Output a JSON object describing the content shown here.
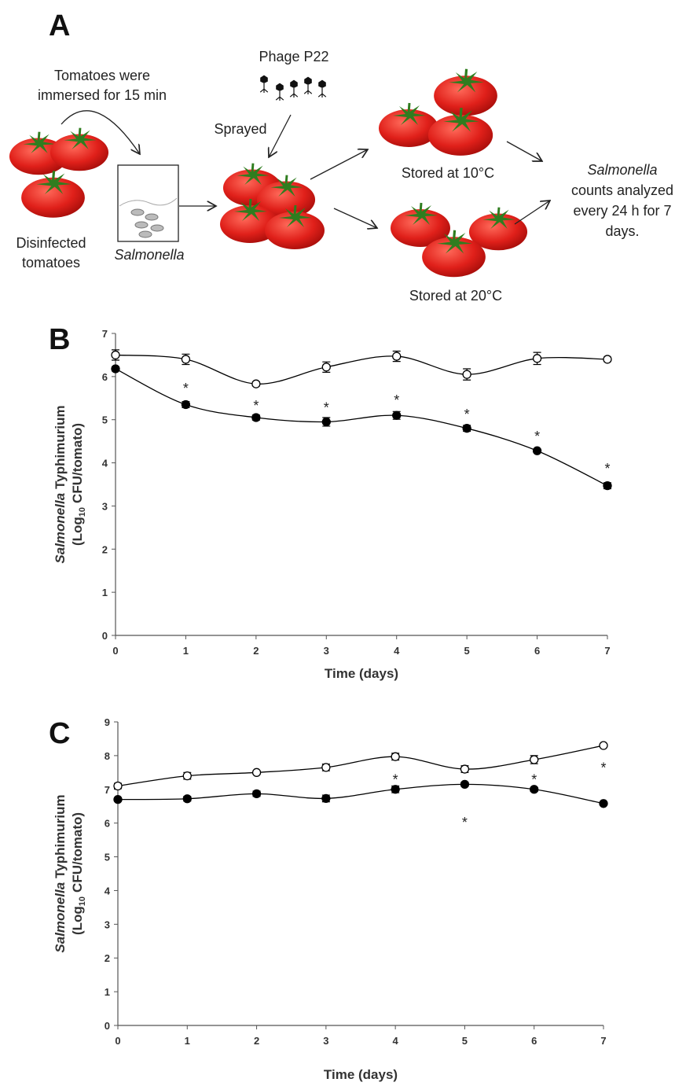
{
  "diagram": {
    "label": "A",
    "immersed": [
      "Tomatoes were",
      "immersed for 15 min"
    ],
    "phage": "Phage P22",
    "sprayed": "Sprayed",
    "disinfected": [
      "Disinfected",
      "tomatoes"
    ],
    "salmonella": "Salmonella",
    "stored_10": "Stored at 10°C",
    "stored_20": "Stored at 20°C",
    "counts": [
      "Salmonella",
      "counts analyzed",
      "every 24 h for 7",
      "days."
    ]
  },
  "chart_data": [
    {
      "type": "line",
      "panel_label": "B",
      "x": [
        0,
        1,
        2,
        3,
        4,
        5,
        6,
        7
      ],
      "series": [
        {
          "color": "#000000",
          "marker": "open",
          "values": [
            6.5,
            6.4,
            5.83,
            6.22,
            6.47,
            6.05,
            6.42,
            6.4
          ],
          "errors": [
            0.12,
            0.12,
            0.05,
            0.12,
            0.12,
            0.13,
            0.14,
            0.05
          ]
        },
        {
          "color": "#000000",
          "marker": "filled",
          "values": [
            6.18,
            5.35,
            5.05,
            4.95,
            5.1,
            4.8,
            4.28,
            3.47
          ],
          "errors": [
            0.05,
            0.07,
            0.06,
            0.1,
            0.09,
            0.07,
            0.04,
            0.07
          ]
        }
      ],
      "xlim": [
        0,
        7
      ],
      "xticks": [
        0,
        1,
        2,
        3,
        4,
        5,
        6,
        7
      ],
      "ylim": [
        0,
        7
      ],
      "yticks": [
        0,
        1,
        2,
        3,
        4,
        5,
        6,
        7
      ],
      "x_label": "Time (days)",
      "y_label": [
        "Salmonella",
        "Typhimurium",
        "(Log",
        "10",
        "CFU/tomato)"
      ],
      "annotations": [
        {
          "text": "*",
          "x": 1,
          "y": 5.83
        },
        {
          "text": "*",
          "x": 2,
          "y": 5.43
        },
        {
          "text": "*",
          "x": 3,
          "y": 5.39
        },
        {
          "text": "*",
          "x": 4,
          "y": 5.56
        },
        {
          "text": "*",
          "x": 5,
          "y": 5.23
        },
        {
          "text": "*",
          "x": 6,
          "y": 4.72
        },
        {
          "text": "*",
          "x": 7,
          "y": 3.97
        }
      ]
    },
    {
      "type": "line",
      "panel_label": "C",
      "x": [
        0,
        1,
        2,
        3,
        4,
        5,
        6,
        7
      ],
      "series": [
        {
          "color": "#000000",
          "marker": "open",
          "values": [
            7.1,
            7.4,
            7.5,
            7.65,
            7.97,
            7.6,
            7.88,
            8.3
          ],
          "errors": [
            0.08,
            0.1,
            0.05,
            0.1,
            0.1,
            0.1,
            0.12,
            0.05
          ]
        },
        {
          "color": "#000000",
          "marker": "filled",
          "values": [
            6.7,
            6.72,
            6.87,
            6.73,
            7.0,
            7.15,
            7.0,
            6.58
          ],
          "errors": [
            0.05,
            0.07,
            0.08,
            0.1,
            0.1,
            0.06,
            0.06,
            0.04
          ]
        }
      ],
      "xlim": [
        0,
        7
      ],
      "xticks": [
        0,
        1,
        2,
        3,
        4,
        5,
        6,
        7
      ],
      "ylim": [
        0,
        9
      ],
      "yticks": [
        0,
        1,
        2,
        3,
        4,
        5,
        6,
        7,
        8,
        9
      ],
      "x_label": "Time (days)",
      "y_label": [
        "Salmonella",
        "Typhimurium",
        "(Log",
        "10",
        "CFU/tomato)"
      ],
      "annotations": [
        {
          "text": "*",
          "x": 4,
          "y": 7.43
        },
        {
          "text": "*",
          "x": 5,
          "y": 6.15
        },
        {
          "text": "*",
          "x": 6,
          "y": 7.43
        },
        {
          "text": "*",
          "x": 7,
          "y": 7.78
        }
      ]
    }
  ]
}
